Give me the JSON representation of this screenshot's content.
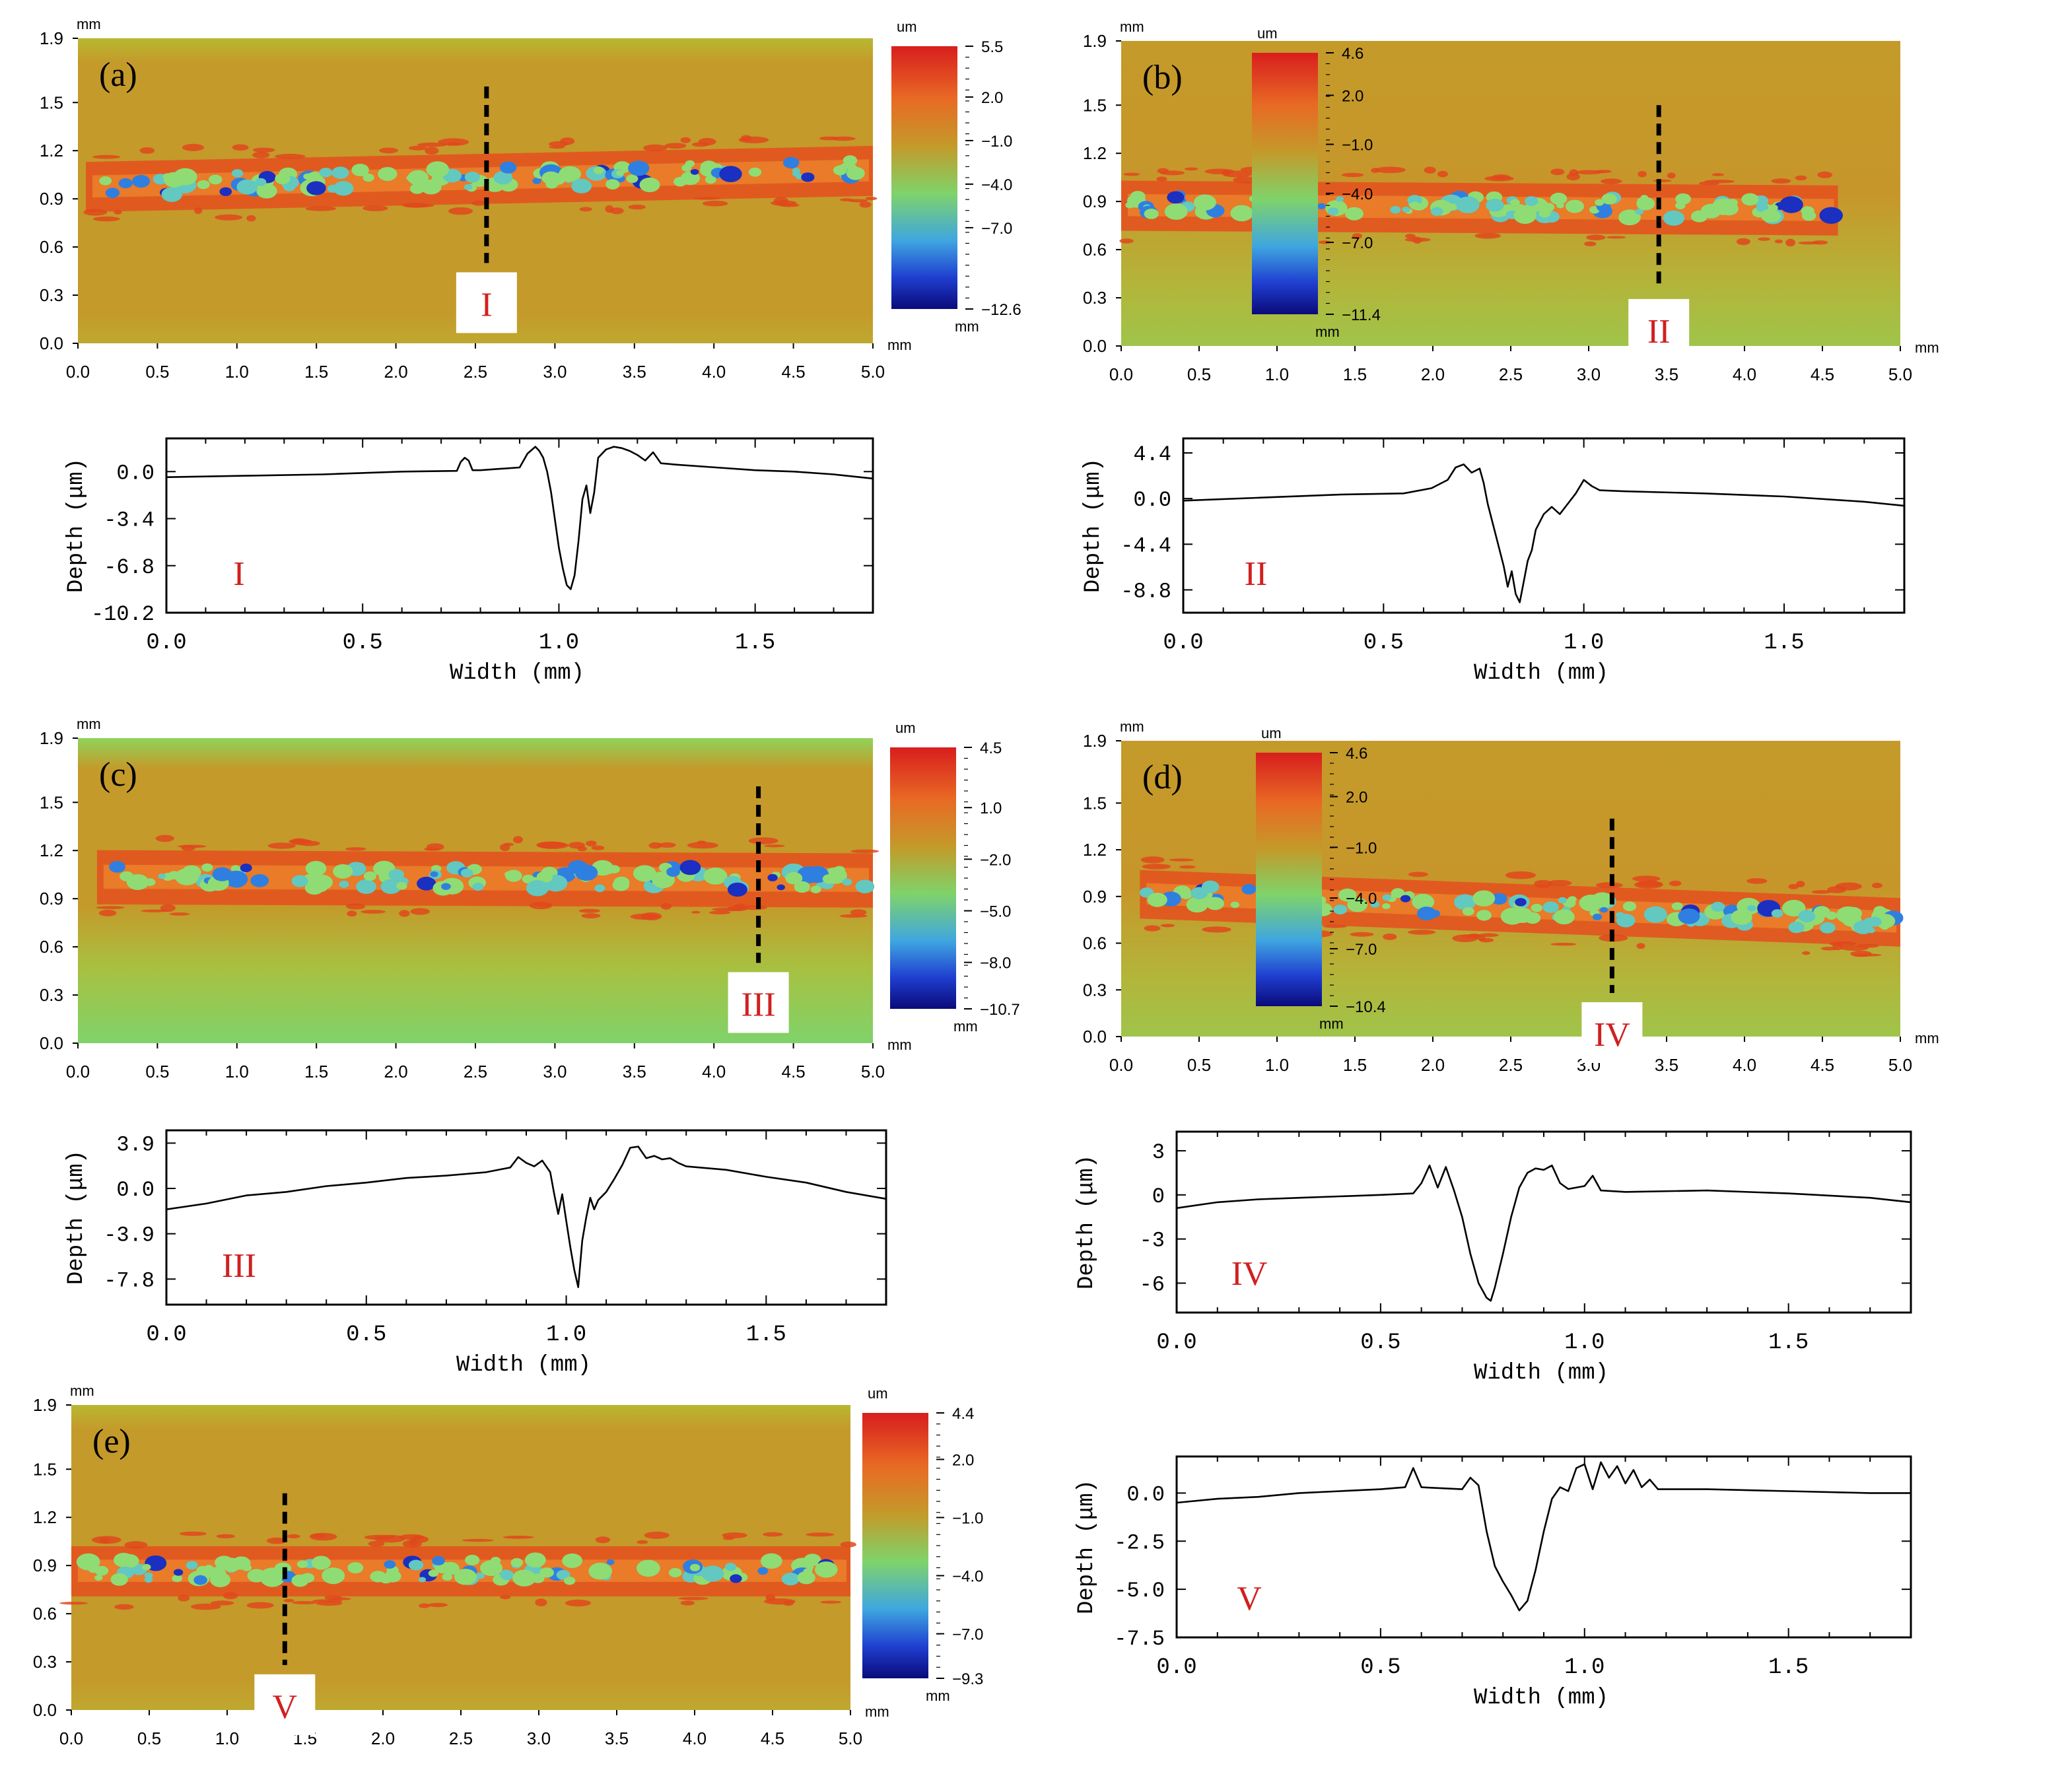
{
  "colors": {
    "map_background": "#c49a2a",
    "map_edge_green": "#8fd35a",
    "marker_text": "#d02020",
    "cut_line": "#000000",
    "profile_line": "#000000",
    "colorbar_stops": [
      "#d81e1e",
      "#e86a24",
      "#c49a2a",
      "#7fd36a",
      "#3fa6e0",
      "#1f3fd0",
      "#0a0a7a"
    ]
  },
  "chart_data": [
    {
      "type": "heatmap",
      "panel": "(a)",
      "unit_y": "mm",
      "unit_x": "mm",
      "x_ticks": [
        "0.0",
        "0.5",
        "1.0",
        "1.5",
        "2.0",
        "2.5",
        "3.0",
        "3.5",
        "4.0",
        "4.5",
        "5.0"
      ],
      "y_ticks": [
        "0.0",
        "0.3",
        "0.6",
        "0.9",
        "1.2",
        "1.5",
        "1.9"
      ],
      "xlim": [
        0,
        5.0
      ],
      "ylim": [
        0,
        1.9
      ],
      "colorbar_unit": "um",
      "colorbar_ticks": [
        "5.5",
        "2.0",
        "−1.0",
        "−4.0",
        "−7.0",
        "−12.6"
      ],
      "colorbar_values": [
        5.5,
        2.0,
        -1.0,
        -4.0,
        -7.0,
        -12.6
      ],
      "track": {
        "x_start": 0.05,
        "x_end": 5.0,
        "y_center_start": 0.98,
        "y_center_end": 1.08,
        "half_width": 0.12
      },
      "background_gradient": "flat",
      "cut_x": 2.57,
      "cut_y_range": [
        0.5,
        1.6
      ],
      "marker": "I"
    },
    {
      "type": "line",
      "profile": "I",
      "xlabel": "Width (mm)",
      "ylabel": "Depth (μm)",
      "x_ticks": [
        "0.0",
        "0.5",
        "1.0",
        "1.5"
      ],
      "y_ticks": [
        "0.0",
        "-3.4",
        "-6.8",
        "-10.2"
      ],
      "xlim": [
        0,
        1.8
      ],
      "ylim": [
        -10.2,
        2.4
      ],
      "series": [
        {
          "name": "I",
          "x": [
            0,
            0.2,
            0.4,
            0.6,
            0.74,
            0.75,
            0.76,
            0.77,
            0.78,
            0.8,
            0.85,
            0.9,
            0.92,
            0.94,
            0.95,
            0.96,
            0.97,
            0.98,
            0.99,
            1.0,
            1.01,
            1.02,
            1.03,
            1.04,
            1.05,
            1.06,
            1.07,
            1.08,
            1.09,
            1.1,
            1.12,
            1.14,
            1.16,
            1.18,
            1.2,
            1.22,
            1.24,
            1.26,
            1.3,
            1.4,
            1.5,
            1.6,
            1.7,
            1.8
          ],
          "y": [
            -0.4,
            -0.3,
            -0.2,
            0.0,
            0.05,
            0.7,
            1.0,
            0.8,
            0.1,
            0.1,
            0.2,
            0.3,
            1.3,
            1.8,
            1.5,
            1.0,
            0.0,
            -1.5,
            -3.5,
            -5.5,
            -7.0,
            -8.2,
            -8.5,
            -7.5,
            -5.0,
            -2.0,
            -1.0,
            -3.0,
            -1.5,
            1.0,
            1.6,
            1.8,
            1.7,
            1.5,
            1.2,
            0.8,
            1.4,
            0.6,
            0.5,
            0.3,
            0.1,
            0.0,
            -0.2,
            -0.5
          ]
        }
      ],
      "marker": "I"
    },
    {
      "type": "heatmap",
      "panel": "(b)",
      "unit_y": "mm",
      "unit_x": "mm",
      "x_ticks": [
        "0.0",
        "0.5",
        "1.0",
        "1.5",
        "2.0",
        "2.5",
        "3.0",
        "3.5",
        "4.0",
        "4.5",
        "5.0"
      ],
      "y_ticks": [
        "0.0",
        "0.3",
        "0.6",
        "0.9",
        "1.2",
        "1.5",
        "1.9"
      ],
      "xlim": [
        0,
        5.0
      ],
      "ylim": [
        0,
        1.9
      ],
      "colorbar_unit": "um",
      "colorbar_ticks": [
        "4.6",
        "2.0",
        "−1.0",
        "−4.0",
        "−7.0",
        "−11.4"
      ],
      "colorbar_values": [
        4.6,
        2.0,
        -1.0,
        -4.0,
        -7.0,
        -11.4
      ],
      "track": {
        "x_start": 0.0,
        "x_end": 4.6,
        "y_center_start": 0.88,
        "y_center_end": 0.85,
        "half_width": 0.12
      },
      "background_gradient": "light-edges",
      "cut_x": 3.45,
      "cut_y_range": [
        0.35,
        1.5
      ],
      "marker": "II"
    },
    {
      "type": "line",
      "profile": "II",
      "xlabel": "Width (mm)",
      "ylabel": "Depth (μm)",
      "x_ticks": [
        "0.0",
        "0.5",
        "1.0",
        "1.5"
      ],
      "y_ticks": [
        "4.4",
        "0.0",
        "-4.4",
        "-8.8"
      ],
      "xlim": [
        0,
        1.8
      ],
      "ylim": [
        -11.0,
        5.8
      ],
      "series": [
        {
          "name": "II",
          "x": [
            0,
            0.2,
            0.4,
            0.55,
            0.62,
            0.66,
            0.68,
            0.7,
            0.72,
            0.74,
            0.75,
            0.76,
            0.78,
            0.8,
            0.81,
            0.82,
            0.83,
            0.84,
            0.85,
            0.86,
            0.87,
            0.88,
            0.9,
            0.92,
            0.94,
            0.96,
            0.98,
            1.0,
            1.02,
            1.04,
            1.1,
            1.3,
            1.5,
            1.7,
            1.8
          ],
          "y": [
            -0.2,
            0.1,
            0.4,
            0.5,
            1.0,
            1.8,
            3.0,
            3.3,
            2.5,
            2.9,
            1.5,
            -0.5,
            -3.5,
            -6.5,
            -8.5,
            -7.0,
            -9.2,
            -10.0,
            -8.0,
            -6.0,
            -5.0,
            -3.0,
            -1.5,
            -0.8,
            -1.5,
            -0.5,
            0.5,
            1.8,
            1.2,
            0.8,
            0.7,
            0.5,
            0.2,
            -0.3,
            -0.7
          ]
        }
      ],
      "marker": "II"
    },
    {
      "type": "heatmap",
      "panel": "(c)",
      "unit_y": "mm",
      "unit_x": "mm",
      "x_ticks": [
        "0.0",
        "0.5",
        "1.0",
        "1.5",
        "2.0",
        "2.5",
        "3.0",
        "3.5",
        "4.0",
        "4.5",
        "5.0"
      ],
      "y_ticks": [
        "0.0",
        "0.3",
        "0.6",
        "0.9",
        "1.2",
        "1.5",
        "1.9"
      ],
      "xlim": [
        0,
        5.0
      ],
      "ylim": [
        0,
        1.9
      ],
      "colorbar_unit": "um",
      "colorbar_ticks": [
        "4.5",
        "1.0",
        "−2.0",
        "−5.0",
        "−8.0",
        "−10.7"
      ],
      "colorbar_values": [
        4.5,
        1.0,
        -2.0,
        -5.0,
        -8.0,
        -10.7
      ],
      "track": {
        "x_start": 0.12,
        "x_end": 5.0,
        "y_center_start": 1.04,
        "y_center_end": 1.02,
        "half_width": 0.13
      },
      "background_gradient": "green-bottom",
      "cut_x": 4.28,
      "cut_y_range": [
        0.5,
        1.6
      ],
      "marker": "III"
    },
    {
      "type": "line",
      "profile": "III",
      "xlabel": "Width (mm)",
      "ylabel": "Depth (μm)",
      "x_ticks": [
        "0.0",
        "0.5",
        "1.0",
        "1.5"
      ],
      "y_ticks": [
        "3.9",
        "0.0",
        "-3.9",
        "-7.8"
      ],
      "xlim": [
        0,
        1.8
      ],
      "ylim": [
        -10.0,
        5.0
      ],
      "series": [
        {
          "name": "III",
          "x": [
            0,
            0.1,
            0.2,
            0.3,
            0.4,
            0.5,
            0.6,
            0.7,
            0.8,
            0.86,
            0.88,
            0.9,
            0.92,
            0.94,
            0.96,
            0.97,
            0.98,
            0.99,
            1.0,
            1.01,
            1.02,
            1.03,
            1.04,
            1.05,
            1.06,
            1.07,
            1.08,
            1.1,
            1.12,
            1.14,
            1.16,
            1.18,
            1.2,
            1.22,
            1.24,
            1.26,
            1.28,
            1.3,
            1.4,
            1.5,
            1.6,
            1.7,
            1.8
          ],
          "y": [
            -1.8,
            -1.3,
            -0.6,
            -0.3,
            0.2,
            0.5,
            0.9,
            1.1,
            1.4,
            1.8,
            2.7,
            2.2,
            1.9,
            2.4,
            1.4,
            -0.5,
            -2.2,
            -0.5,
            -2.8,
            -5.0,
            -7.0,
            -8.5,
            -4.5,
            -2.5,
            -0.8,
            -1.8,
            -1.0,
            -0.3,
            0.8,
            2.0,
            3.5,
            3.6,
            2.6,
            2.8,
            2.5,
            2.6,
            2.2,
            1.9,
            1.6,
            1.0,
            0.5,
            -0.3,
            -0.9
          ]
        }
      ],
      "marker": "III"
    },
    {
      "type": "heatmap",
      "panel": "(d)",
      "unit_y": "mm",
      "unit_x": "mm",
      "x_ticks": [
        "0.0",
        "0.5",
        "1.0",
        "1.5",
        "2.0",
        "2.5",
        "3.0",
        "3.5",
        "4.0",
        "4.5",
        "5.0"
      ],
      "y_ticks": [
        "0.0",
        "0.3",
        "0.6",
        "0.9",
        "1.2",
        "1.5",
        "1.9"
      ],
      "xlim": [
        0,
        5.0
      ],
      "ylim": [
        0,
        1.9
      ],
      "colorbar_unit": "um",
      "colorbar_ticks": [
        "4.6",
        "2.0",
        "−1.0",
        "−4.0",
        "−7.0",
        "−10.4"
      ],
      "colorbar_values": [
        4.6,
        2.0,
        -1.0,
        -4.0,
        -7.0,
        -10.4
      ],
      "track": {
        "x_start": 0.12,
        "x_end": 5.0,
        "y_center_start": 0.92,
        "y_center_end": 0.74,
        "half_width": 0.12
      },
      "background_gradient": "light-edges",
      "cut_x": 3.15,
      "cut_y_range": [
        0.28,
        1.4
      ],
      "marker": "IV"
    },
    {
      "type": "line",
      "profile": "IV",
      "xlabel": "Width (mm)",
      "ylabel": "Depth (μm)",
      "x_ticks": [
        "0.0",
        "0.5",
        "1.0",
        "1.5"
      ],
      "y_ticks": [
        "3",
        "0",
        "-3",
        "-6"
      ],
      "xlim": [
        0,
        1.8
      ],
      "ylim": [
        -8.0,
        4.3
      ],
      "series": [
        {
          "name": "IV",
          "x": [
            0,
            0.1,
            0.2,
            0.3,
            0.4,
            0.5,
            0.58,
            0.6,
            0.62,
            0.64,
            0.66,
            0.68,
            0.7,
            0.72,
            0.74,
            0.76,
            0.77,
            0.78,
            0.8,
            0.82,
            0.84,
            0.86,
            0.88,
            0.9,
            0.92,
            0.94,
            0.96,
            1.0,
            1.02,
            1.04,
            1.1,
            1.3,
            1.5,
            1.7,
            1.8
          ],
          "y": [
            -0.9,
            -0.5,
            -0.3,
            -0.2,
            -0.1,
            0.0,
            0.1,
            0.8,
            2.0,
            0.5,
            1.9,
            0.3,
            -1.5,
            -4.0,
            -6.0,
            -7.0,
            -7.2,
            -6.3,
            -4.0,
            -1.5,
            0.5,
            1.5,
            1.8,
            1.7,
            2.0,
            0.8,
            0.4,
            0.6,
            1.3,
            0.3,
            0.2,
            0.3,
            0.1,
            -0.2,
            -0.5
          ]
        }
      ],
      "marker": "IV"
    },
    {
      "type": "heatmap",
      "panel": "(e)",
      "unit_y": "mm",
      "unit_x": "mm",
      "x_ticks": [
        "0.0",
        "0.5",
        "1.0",
        "1.5",
        "2.0",
        "2.5",
        "3.0",
        "3.5",
        "4.0",
        "4.5",
        "5.0"
      ],
      "y_ticks": [
        "0.0",
        "0.3",
        "0.6",
        "0.9",
        "1.2",
        "1.5",
        "1.9"
      ],
      "xlim": [
        0,
        5.0
      ],
      "ylim": [
        0,
        1.9
      ],
      "colorbar_unit": "um",
      "colorbar_ticks": [
        "4.4",
        "2.0",
        "−1.0",
        "−4.0",
        "−7.0",
        "−9.3"
      ],
      "colorbar_values": [
        4.4,
        2.0,
        -1.0,
        -4.0,
        -7.0,
        -9.3
      ],
      "track": {
        "x_start": 0.0,
        "x_end": 5.0,
        "y_center_start": 0.87,
        "y_center_end": 0.87,
        "half_width": 0.12
      },
      "background_gradient": "flat",
      "cut_x": 1.37,
      "cut_y_range": [
        0.28,
        1.35
      ],
      "marker": "V"
    },
    {
      "type": "line",
      "profile": "V",
      "xlabel": "Width (mm)",
      "ylabel": "Depth (μm)",
      "x_ticks": [
        "0.0",
        "0.5",
        "1.0",
        "1.5"
      ],
      "y_ticks": [
        "0.0",
        "-2.5",
        "-5.0",
        "-7.5"
      ],
      "xlim": [
        0,
        1.8
      ],
      "ylim": [
        -7.5,
        1.9
      ],
      "series": [
        {
          "name": "V",
          "x": [
            0,
            0.1,
            0.2,
            0.3,
            0.4,
            0.5,
            0.56,
            0.58,
            0.6,
            0.7,
            0.72,
            0.74,
            0.76,
            0.78,
            0.8,
            0.82,
            0.84,
            0.86,
            0.88,
            0.9,
            0.92,
            0.94,
            0.96,
            0.98,
            1.0,
            1.02,
            1.04,
            1.06,
            1.08,
            1.1,
            1.12,
            1.14,
            1.16,
            1.18,
            1.3,
            1.5,
            1.7,
            1.8
          ],
          "y": [
            -0.5,
            -0.3,
            -0.2,
            0.0,
            0.1,
            0.2,
            0.3,
            1.3,
            0.3,
            0.2,
            0.8,
            0.4,
            -2.0,
            -3.8,
            -4.6,
            -5.3,
            -6.1,
            -5.6,
            -4.0,
            -2.0,
            -0.3,
            0.3,
            0.1,
            1.3,
            1.5,
            0.2,
            1.6,
            0.8,
            1.4,
            0.5,
            1.2,
            0.3,
            0.7,
            0.2,
            0.2,
            0.1,
            0.0,
            0.0
          ]
        }
      ],
      "marker": "V"
    }
  ]
}
